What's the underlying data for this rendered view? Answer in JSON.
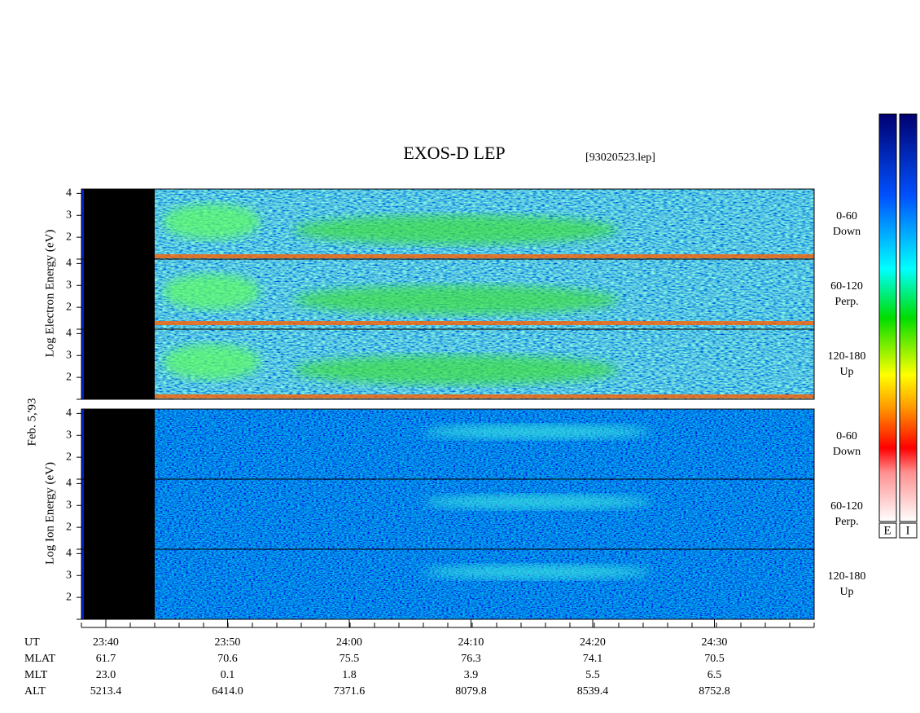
{
  "title": "EXOS-D LEP",
  "file": "[93020523.lep]",
  "date_label": "Feb. 5,'93",
  "energy_ticks": [
    2,
    3,
    4
  ],
  "energy_lim": [
    1,
    4.2
  ],
  "electron": {
    "axis_label": "Log  Electron  Energy (eV)",
    "panels": [
      [
        "0-60",
        "Down"
      ],
      [
        "60-120",
        "Perp."
      ],
      [
        "120-180",
        "Up"
      ]
    ]
  },
  "ion": {
    "axis_label": "Log  Ion  Energy (eV)",
    "panels": [
      [
        "0-60",
        "Down"
      ],
      [
        "60-120",
        "Perp."
      ],
      [
        "120-180",
        "Up"
      ]
    ]
  },
  "colorbars": [
    "E",
    "I"
  ],
  "time_axis": {
    "row_labels": [
      "UT",
      "MLAT",
      "MLT",
      "ALT"
    ],
    "columns": [
      [
        "23:40",
        "61.7",
        "23.0",
        "5213.4"
      ],
      [
        "23:50",
        "70.6",
        "0.1",
        "6414.0"
      ],
      [
        "24:00",
        "75.5",
        "1.8",
        "7371.6"
      ],
      [
        "24:10",
        "76.3",
        "3.9",
        "8079.8"
      ],
      [
        "24:20",
        "74.1",
        "5.5",
        "8539.4"
      ],
      [
        "24:30",
        "70.5",
        "6.5",
        "8752.8"
      ]
    ]
  }
}
